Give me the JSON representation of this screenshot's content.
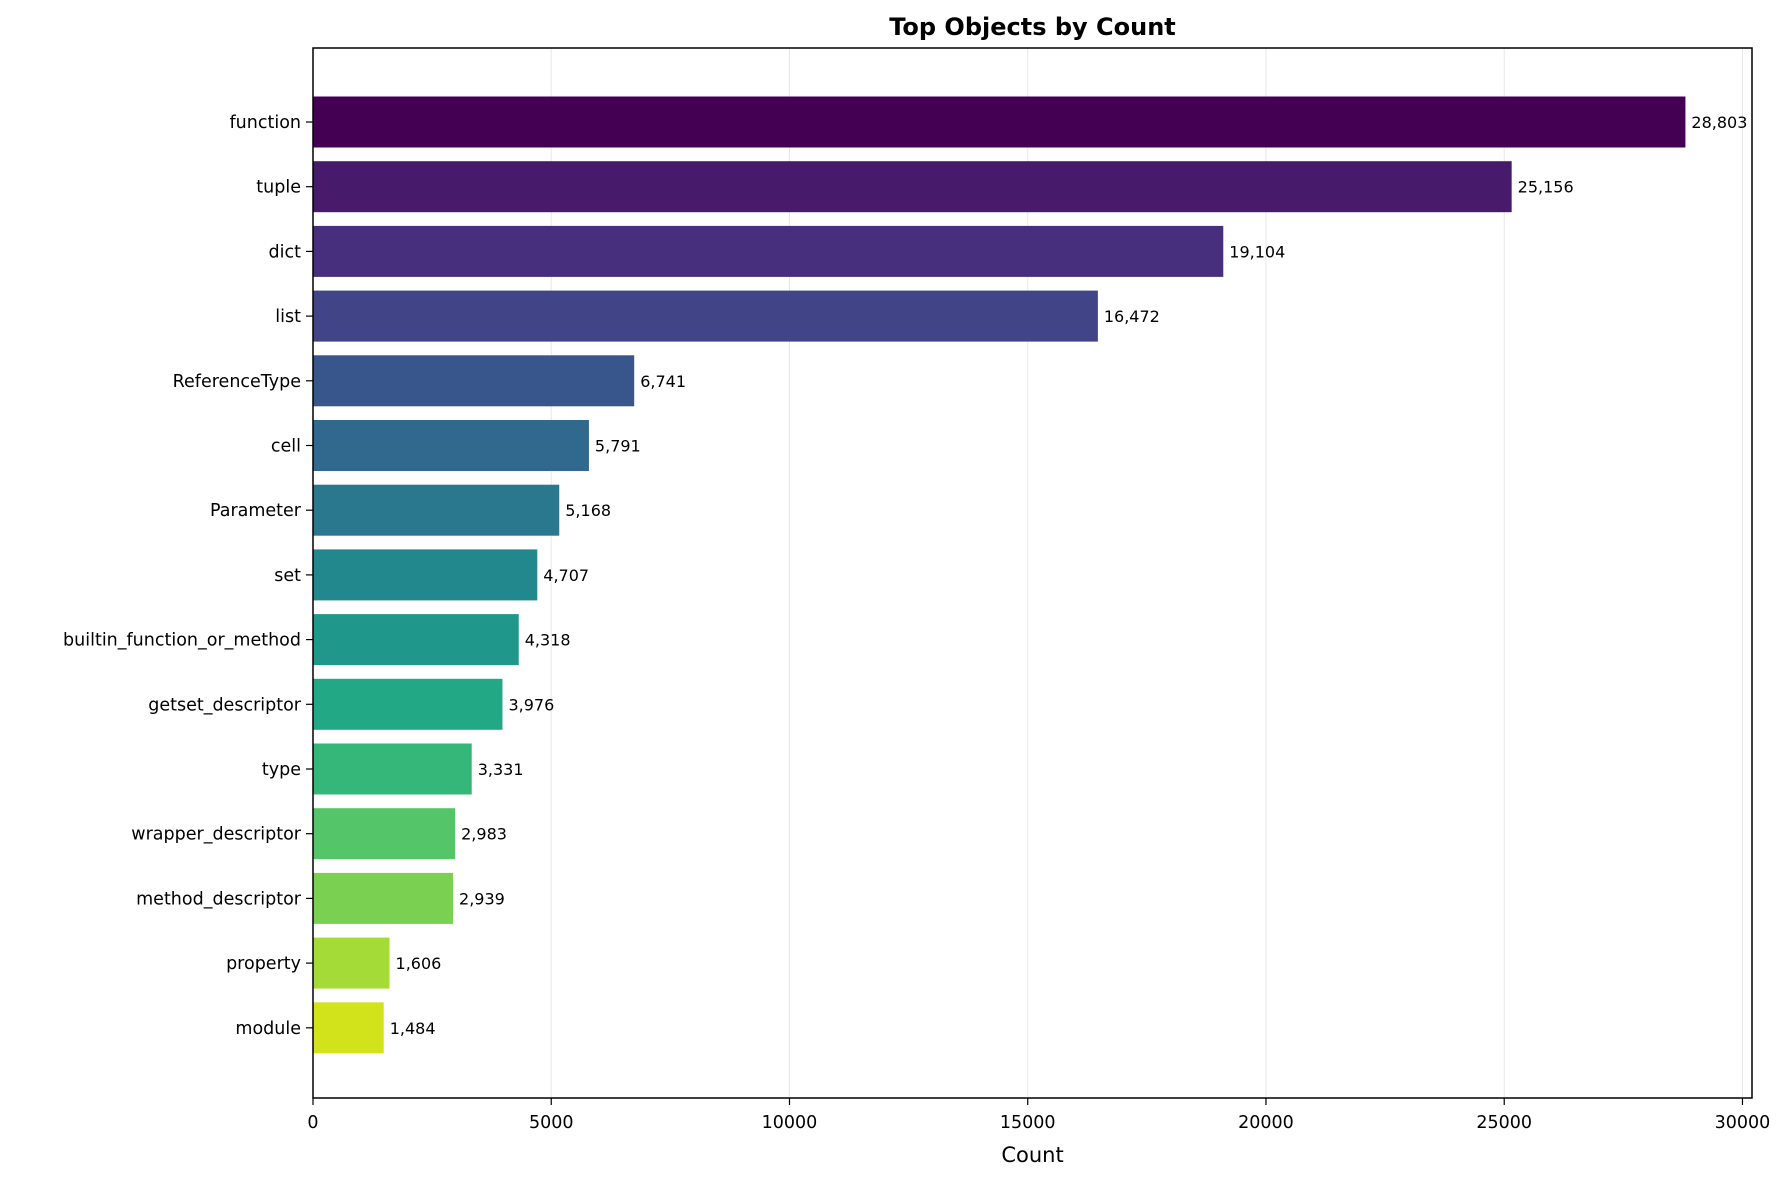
{
  "chart_data": {
    "type": "bar",
    "orientation": "horizontal",
    "title": "Top Objects by Count",
    "xlabel": "Count",
    "ylabel": "",
    "xlim": [
      0,
      30200
    ],
    "xticks": [
      0,
      5000,
      10000,
      15000,
      20000,
      25000,
      30000
    ],
    "xtick_labels": [
      "0",
      "5000",
      "10000",
      "15000",
      "20000",
      "25000",
      "30000"
    ],
    "grid": "vertical",
    "legend": "none",
    "categories": [
      "function",
      "tuple",
      "dict",
      "list",
      "ReferenceType",
      "cell",
      "Parameter",
      "set",
      "builtin_function_or_method",
      "getset_descriptor",
      "type",
      "wrapper_descriptor",
      "method_descriptor",
      "property",
      "module"
    ],
    "values": [
      28803,
      25156,
      19104,
      16472,
      6741,
      5791,
      5168,
      4707,
      4318,
      3976,
      3331,
      2983,
      2939,
      1606,
      1484
    ],
    "value_labels": [
      "28,803",
      "25,156",
      "19,104",
      "16,472",
      "6,741",
      "5,791",
      "5,168",
      "4,707",
      "4,318",
      "3,976",
      "3,331",
      "2,983",
      "2,939",
      "1,606",
      "1,484"
    ],
    "colormap": "viridis",
    "colors": [
      "#440154",
      "#481a6c",
      "#472f7d",
      "#414487",
      "#39568c",
      "#31688e",
      "#2a788e",
      "#23888e",
      "#1f988b",
      "#22a884",
      "#35b779",
      "#54c568",
      "#7ad151",
      "#a5db36",
      "#d2e21b"
    ]
  }
}
